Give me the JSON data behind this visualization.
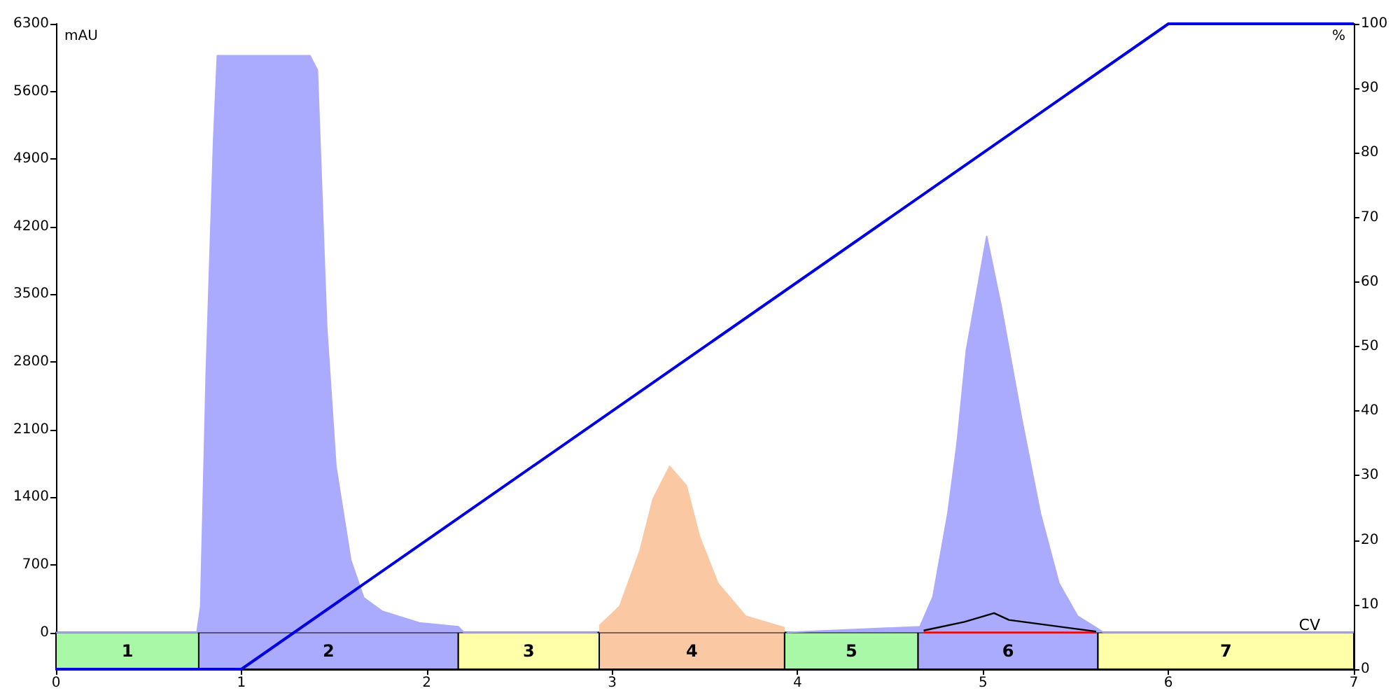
{
  "chart_data": {
    "type": "area",
    "xlabel": "CV",
    "ylabel": "mAU",
    "y2label": "%",
    "xlim": [
      0,
      7
    ],
    "xticks": [
      0,
      1,
      2,
      3,
      4,
      5,
      6,
      7
    ],
    "ylim": [
      -380,
      6300
    ],
    "yticks": [
      0,
      700,
      1400,
      2100,
      2800,
      3500,
      4200,
      4900,
      5600,
      6300
    ],
    "y2lim": [
      0,
      100
    ],
    "y2ticks": [
      0,
      10,
      20,
      30,
      40,
      50,
      60,
      70,
      80,
      90,
      100
    ],
    "series": [
      {
        "color": "#aaaaff",
        "x": [
          0,
          0.76,
          0.78,
          0.81,
          0.85,
          0.87,
          1.37,
          1.41,
          1.46,
          1.51,
          1.59,
          1.66,
          1.76,
          1.96,
          2.17,
          2.2,
          2.92,
          3.3,
          3.94,
          4.66,
          4.73,
          4.81,
          4.86,
          4.91,
          5.02,
          5.1,
          5.21,
          5.31,
          5.41,
          5.51,
          5.61,
          5.65,
          7
        ],
        "values": [
          0,
          0,
          270,
          2680,
          5100,
          5970,
          5970,
          5820,
          3170,
          1720,
          750,
          360,
          220,
          100,
          60,
          0,
          0,
          null,
          0,
          60,
          370,
          1230,
          1960,
          2920,
          4100,
          3360,
          2200,
          1230,
          510,
          170,
          50,
          0,
          0
        ]
      },
      {
        "color": "#fbc8a4",
        "x": [
          2.93,
          3.04,
          3.15,
          3.22,
          3.31,
          3.4,
          3.47,
          3.57,
          3.72,
          3.93
        ],
        "values": [
          70,
          270,
          850,
          1380,
          1720,
          1520,
          1000,
          510,
          170,
          50
        ]
      },
      {
        "type": "line",
        "color": "#ff0000",
        "x": [
          4.68,
          5.61
        ],
        "values": [
          0,
          0
        ]
      },
      {
        "type": "line",
        "color": "#000000",
        "x": [
          4.68,
          4.9,
          5.06,
          5.14,
          5.61
        ],
        "values": [
          20,
          110,
          200,
          130,
          10
        ]
      },
      {
        "type": "line",
        "axis": "y2",
        "color": "#0000e0",
        "x": [
          0,
          1,
          6,
          7
        ],
        "values": [
          0,
          0,
          100,
          100
        ]
      }
    ],
    "bands": [
      {
        "axis": "x",
        "from": 0,
        "to": 0.77,
        "label": "1",
        "color": "#a8f8a8"
      },
      {
        "axis": "x",
        "from": 0.77,
        "to": 2.17,
        "label": "2",
        "color": "#aaaaff"
      },
      {
        "axis": "x",
        "from": 2.17,
        "to": 2.93,
        "label": "3",
        "color": "#ffffaa"
      },
      {
        "axis": "x",
        "from": 2.93,
        "to": 3.93,
        "label": "4",
        "color": "#fbc8a4"
      },
      {
        "axis": "x",
        "from": 3.93,
        "to": 4.65,
        "label": "5",
        "color": "#a8f8a8"
      },
      {
        "axis": "x",
        "from": 4.65,
        "to": 5.62,
        "label": "6",
        "color": "#aaaaff"
      },
      {
        "axis": "x",
        "from": 5.62,
        "to": 7,
        "label": "7",
        "color": "#ffffaa"
      }
    ]
  }
}
